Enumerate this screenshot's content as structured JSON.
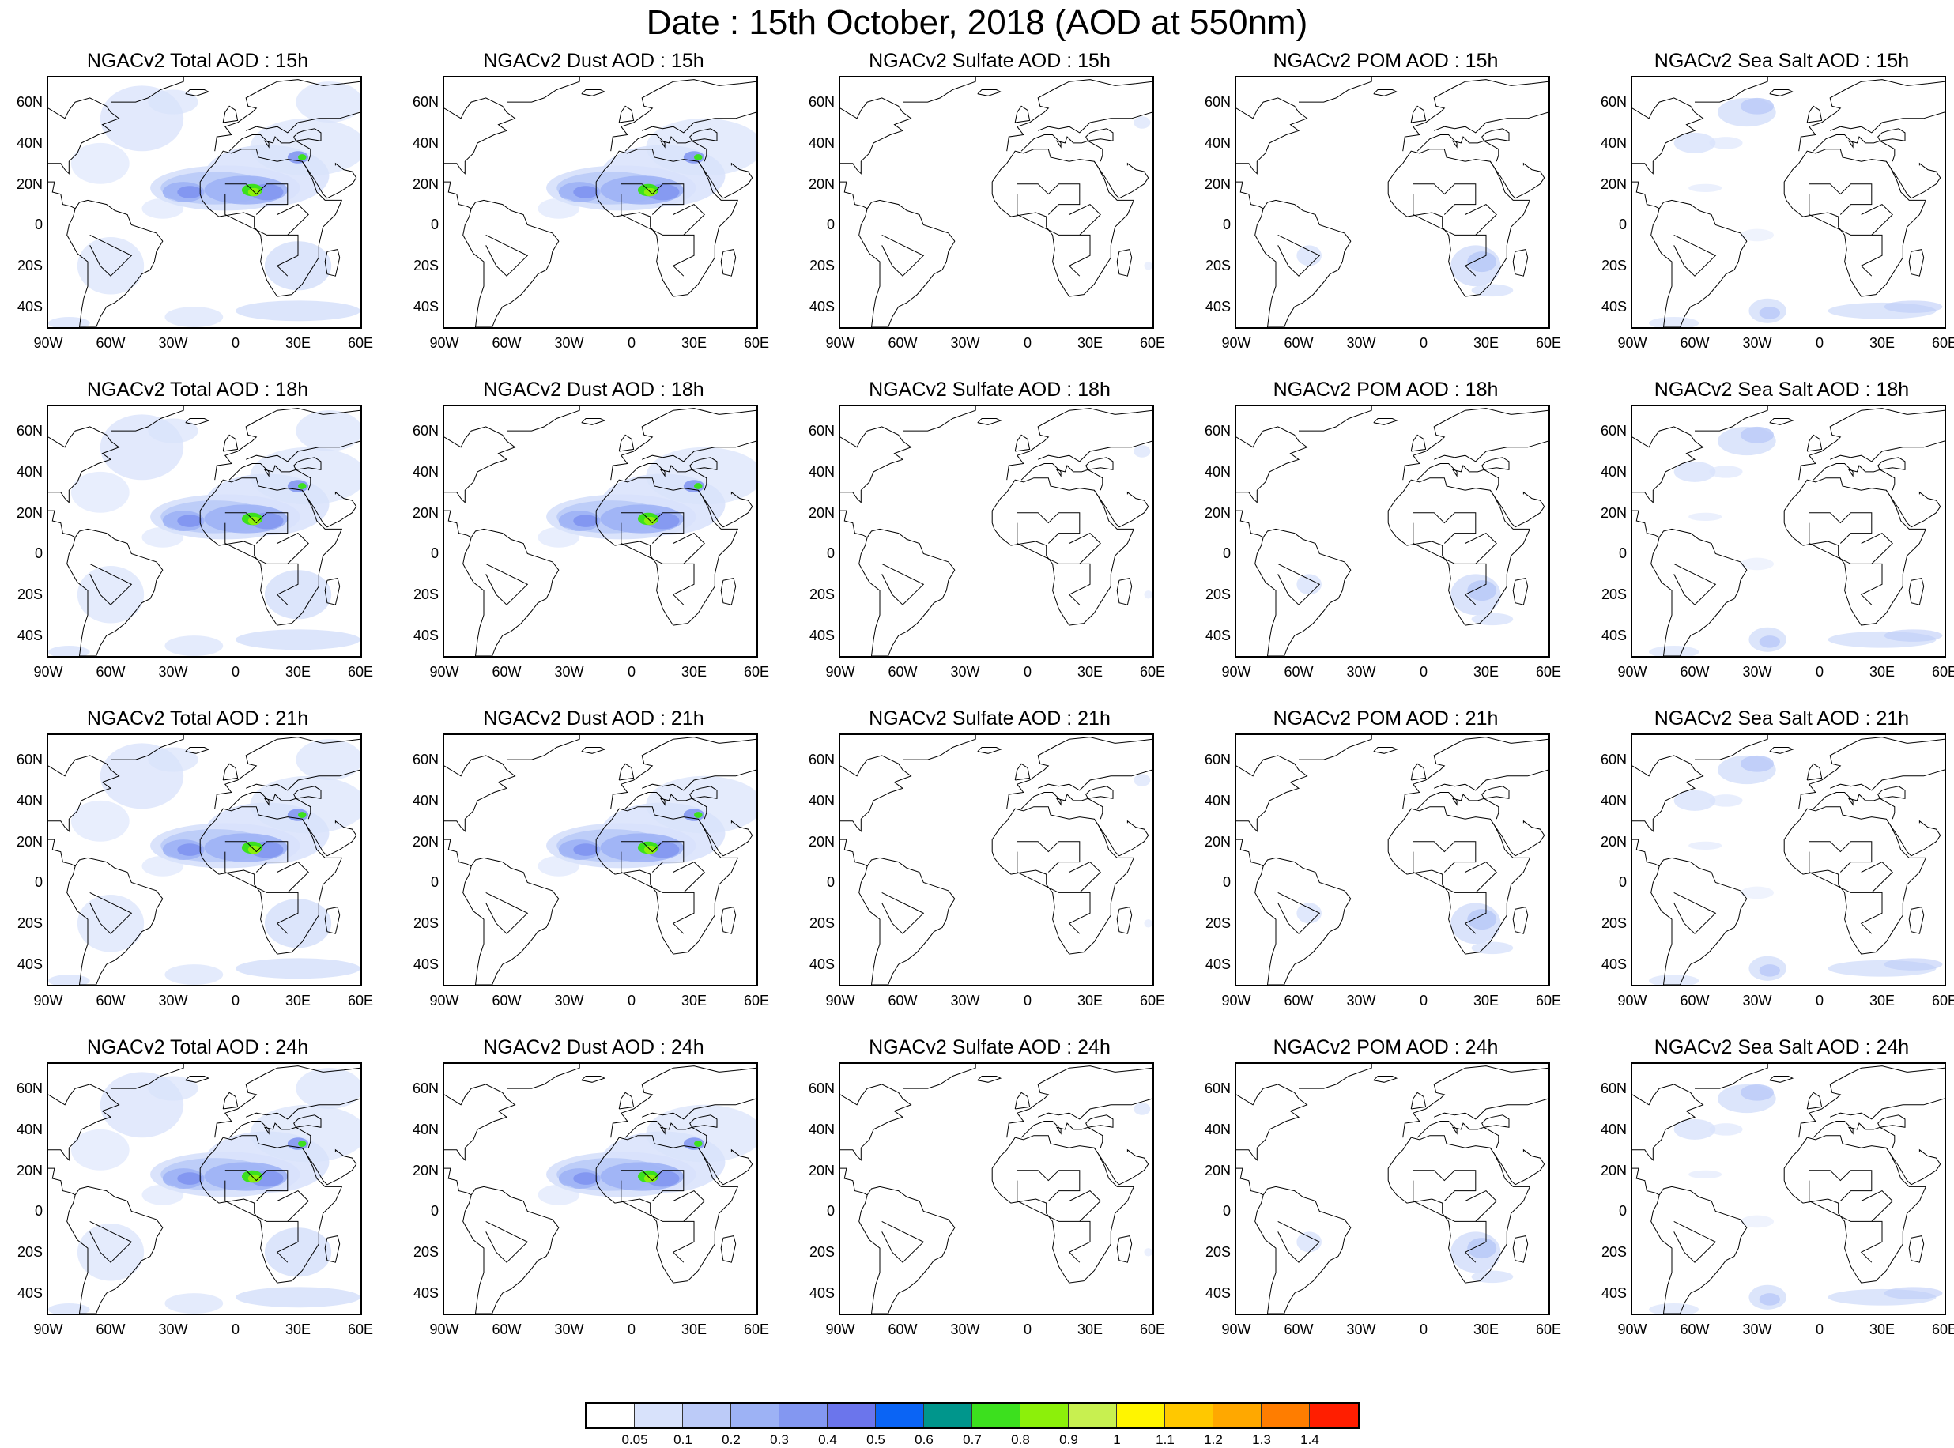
{
  "title": "Date : 15th October, 2018 (AOD at 550nm)",
  "map": {
    "lon_range": [
      -90,
      60
    ],
    "lat_range": [
      -50,
      72
    ],
    "lat_ticks": [
      "60N",
      "40N",
      "20N",
      "0",
      "20S",
      "40S"
    ],
    "lon_ticks": [
      "90W",
      "60W",
      "30W",
      "0",
      "30E",
      "60E"
    ]
  },
  "panels": [
    {
      "title": "NGACv2 Total AOD : 15h",
      "species": "total"
    },
    {
      "title": "NGACv2 Dust AOD : 15h",
      "species": "dust"
    },
    {
      "title": "NGACv2 Sulfate AOD : 15h",
      "species": "sulfate"
    },
    {
      "title": "NGACv2 POM AOD : 15h",
      "species": "pom"
    },
    {
      "title": "NGACv2 Sea Salt AOD : 15h",
      "species": "seasalt"
    },
    {
      "title": "NGACv2 Total AOD : 18h",
      "species": "total"
    },
    {
      "title": "NGACv2 Dust AOD : 18h",
      "species": "dust"
    },
    {
      "title": "NGACv2 Sulfate AOD : 18h",
      "species": "sulfate"
    },
    {
      "title": "NGACv2 POM AOD : 18h",
      "species": "pom"
    },
    {
      "title": "NGACv2 Sea Salt AOD : 18h",
      "species": "seasalt"
    },
    {
      "title": "NGACv2 Total AOD : 21h",
      "species": "total"
    },
    {
      "title": "NGACv2 Dust AOD : 21h",
      "species": "dust"
    },
    {
      "title": "NGACv2 Sulfate AOD : 21h",
      "species": "sulfate"
    },
    {
      "title": "NGACv2 POM AOD : 21h",
      "species": "pom"
    },
    {
      "title": "NGACv2 Sea Salt AOD : 21h",
      "species": "seasalt"
    },
    {
      "title": "NGACv2 Total AOD : 24h",
      "species": "total"
    },
    {
      "title": "NGACv2 Dust AOD : 24h",
      "species": "dust"
    },
    {
      "title": "NGACv2 Sulfate AOD : 24h",
      "species": "sulfate"
    },
    {
      "title": "NGACv2 POM AOD : 24h",
      "species": "pom"
    },
    {
      "title": "NGACv2 Sea Salt  AOD : 24h",
      "species": "seasalt"
    }
  ],
  "colorbar": {
    "labels": [
      "0.05",
      "0.1",
      "0.2",
      "0.3",
      "0.4",
      "0.5",
      "0.6",
      "0.7",
      "0.8",
      "0.9",
      "1",
      "1.1",
      "1.2",
      "1.3",
      "1.4"
    ],
    "colors": [
      "#ffffff",
      "#d8e2fb",
      "#bccbf8",
      "#9db2f5",
      "#8397f1",
      "#6b75ec",
      "#0a64f5",
      "#00968c",
      "#3ce01e",
      "#8cf00a",
      "#c8f050",
      "#fff500",
      "#ffc800",
      "#ffa800",
      "#ff7d00",
      "#ff1e00"
    ]
  }
}
